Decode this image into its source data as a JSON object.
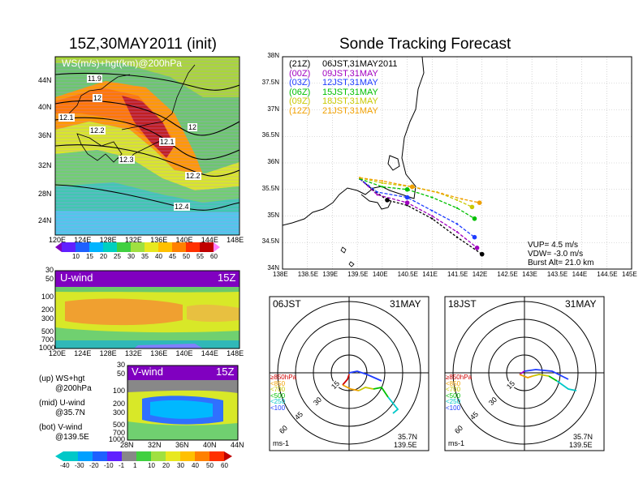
{
  "left_title": "15Z,30MAY2011 (init)",
  "right_title": "Sonde Tracking Forecast",
  "map_panel": {
    "label": "WS(m/s)+hgt(km)@200hPa",
    "lon_ticks": [
      "120E",
      "124E",
      "128E",
      "132E",
      "136E",
      "140E",
      "144E",
      "148E"
    ],
    "lat_ticks": [
      "44N",
      "40N",
      "36N",
      "32N",
      "28N",
      "24N"
    ],
    "contour_labels": [
      "11.9",
      "12",
      "12.1",
      "12.2",
      "12.1",
      "12",
      "12.3",
      "12.2",
      "12.4"
    ],
    "colorbar_ticks": [
      "10",
      "15",
      "20",
      "25",
      "30",
      "35",
      "40",
      "45",
      "50",
      "55",
      "60"
    ]
  },
  "u_panel": {
    "label": "U-wind",
    "time": "15Z",
    "p_ticks": [
      "30",
      "50",
      "100",
      "200",
      "300",
      "500",
      "700",
      "1000"
    ],
    "lon_ticks": [
      "120E",
      "124E",
      "128E",
      "132E",
      "136E",
      "140E",
      "144E",
      "148E"
    ]
  },
  "v_panel": {
    "label": "V-wind",
    "time": "15Z",
    "p_ticks": [
      "30",
      "50",
      "100",
      "200",
      "300",
      "500",
      "700",
      "1000"
    ],
    "lat_ticks": [
      "28N",
      "32N",
      "36N",
      "40N",
      "44N"
    ]
  },
  "notes": {
    "up1": "(up) WS+hgt",
    "up2": "@200hPa",
    "mid1": "(mid) U-wind",
    "mid2": "@35.7N",
    "bot1": "(bot) V-wind",
    "bot2": "@139.5E"
  },
  "bottom_colorbar_ticks": [
    "-40",
    "-30",
    "-20",
    "-10",
    "-1",
    "1",
    "10",
    "20",
    "30",
    "40",
    "50",
    "60"
  ],
  "track_map": {
    "lat_ticks": [
      "38N",
      "37.5N",
      "37N",
      "36.5N",
      "36N",
      "35.5N",
      "35N",
      "34.5N",
      "34N"
    ],
    "lon_ticks": [
      "138E",
      "138.5E",
      "139E",
      "139.5E",
      "140E",
      "140.5E",
      "141E",
      "141.5E",
      "142E",
      "142.5E",
      "143E",
      "143.5E",
      "144E",
      "144.5E",
      "145E"
    ],
    "legend": [
      {
        "utc": "(21Z)",
        "jst": "06JST,31MAY2011",
        "color": "#000000"
      },
      {
        "utc": "(00Z)",
        "jst": "09JST,31MAY",
        "color": "#a000c0"
      },
      {
        "utc": "(03Z)",
        "jst": "12JST,31MAY",
        "color": "#1e3cff"
      },
      {
        "utc": "(06Z)",
        "jst": "15JST,31MAY",
        "color": "#00c000"
      },
      {
        "utc": "(09Z)",
        "jst": "18JST,31MAY",
        "color": "#c8c800"
      },
      {
        "utc": "(12Z)",
        "jst": "21JST,31MAY",
        "color": "#f0a000"
      }
    ],
    "params": {
      "vup": "VUP= 4.5 m/s",
      "vdw": "VDW= -3.0 m/s",
      "burst": "Burst Alt= 21.0 km"
    }
  },
  "hodographs": [
    {
      "time": "06JST",
      "date": "31MAY",
      "lat": "35.7N",
      "lon": "139.5E",
      "unit": "ms-1"
    },
    {
      "time": "18JST",
      "date": "31MAY",
      "lat": "35.7N",
      "lon": "139.5E",
      "unit": "ms-1"
    }
  ],
  "hodo_ring_labels": [
    "15",
    "30",
    "45",
    "60"
  ],
  "hodo_legend": [
    {
      "text": "≥850hPa",
      "color": "#d00000"
    },
    {
      "text": "<850",
      "color": "#f0a000"
    },
    {
      "text": "<700",
      "color": "#c8c800"
    },
    {
      "text": "<500",
      "color": "#00c000"
    },
    {
      "text": "<250",
      "color": "#00c8c8"
    },
    {
      "text": "<100",
      "color": "#1e3cff"
    }
  ],
  "chart_data": {
    "type": "line",
    "title": "Sonde Tracking Forecast",
    "xlim": [
      138,
      145
    ],
    "ylim": [
      34,
      38
    ],
    "grid": true,
    "series": [
      {
        "name": "(21Z) 06JST,31MAY2011",
        "color": "#000000",
        "x": [
          139.55,
          139.8,
          140.1,
          140.5,
          141.0,
          141.5,
          142.0
        ],
        "y": [
          35.7,
          35.5,
          35.3,
          35.2,
          34.95,
          34.6,
          34.28
        ]
      },
      {
        "name": "(00Z) 09JST,31MAY",
        "color": "#a000c0",
        "x": [
          139.55,
          139.9,
          140.5,
          141.0,
          141.5,
          141.9
        ],
        "y": [
          35.7,
          35.4,
          35.25,
          35.0,
          34.7,
          34.4
        ]
      },
      {
        "name": "(03Z) 12JST,31MAY",
        "color": "#1e3cff",
        "x": [
          139.55,
          139.9,
          140.5,
          141.0,
          141.5,
          141.85
        ],
        "y": [
          35.7,
          35.45,
          35.35,
          35.1,
          34.85,
          34.6
        ]
      },
      {
        "name": "(06Z) 15JST,31MAY",
        "color": "#00c000",
        "x": [
          139.55,
          140.0,
          140.5,
          141.0,
          141.5,
          141.85
        ],
        "y": [
          35.7,
          35.55,
          35.5,
          35.35,
          35.15,
          34.95
        ]
      },
      {
        "name": "(09Z) 18JST,31MAY",
        "color": "#c8c800",
        "x": [
          139.55,
          140.0,
          140.6,
          141.1,
          141.5,
          141.8
        ],
        "y": [
          35.72,
          35.62,
          35.55,
          35.45,
          35.3,
          35.17
        ]
      },
      {
        "name": "(12Z) 21JST,31MAY",
        "color": "#f0a000",
        "x": [
          139.55,
          140.0,
          140.6,
          141.2,
          141.6,
          141.95
        ],
        "y": [
          35.72,
          35.66,
          35.55,
          35.42,
          35.32,
          35.25
        ]
      }
    ]
  }
}
